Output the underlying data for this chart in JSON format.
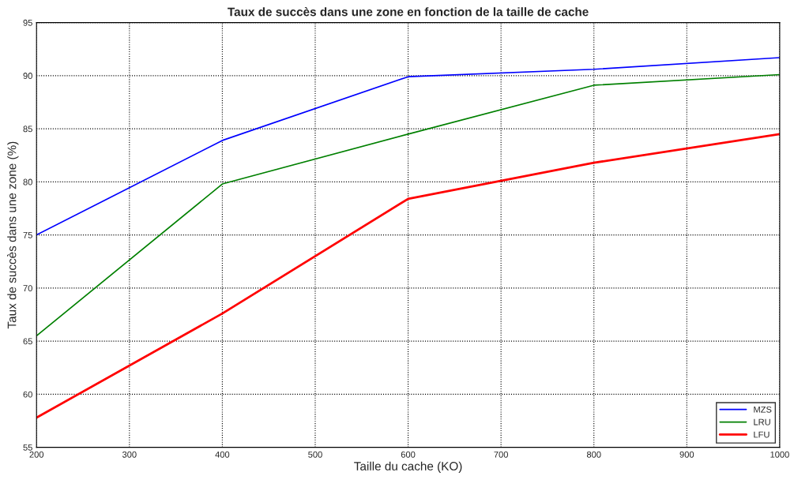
{
  "chart_data": {
    "type": "line",
    "title": "Taux de succès dans une zone en fonction de la taille de cache",
    "xlabel": "Taille du cache (KO)",
    "ylabel": "Taux de succès dans une zone (%)",
    "x": [
      200,
      400,
      600,
      800,
      1000
    ],
    "series": [
      {
        "name": "MZS",
        "color": "#0000ff",
        "values": [
          75,
          83.9,
          89.9,
          90.6,
          91.7
        ]
      },
      {
        "name": "LRU",
        "color": "#008000",
        "values": [
          65.5,
          79.8,
          84.5,
          89.1,
          90.1
        ]
      },
      {
        "name": "LFU",
        "color": "#ff0000",
        "values": [
          57.8,
          67.6,
          78.4,
          81.8,
          84.5
        ]
      }
    ],
    "xlim": [
      200,
      1000
    ],
    "xticks": [
      200,
      300,
      400,
      500,
      600,
      700,
      800,
      900,
      1000
    ],
    "ylim": [
      55,
      95
    ],
    "yticks": [
      55,
      60,
      65,
      70,
      75,
      80,
      85,
      90,
      95
    ],
    "grid": true,
    "legend": "bottom right",
    "marker": "none",
    "line_style": "solid"
  }
}
